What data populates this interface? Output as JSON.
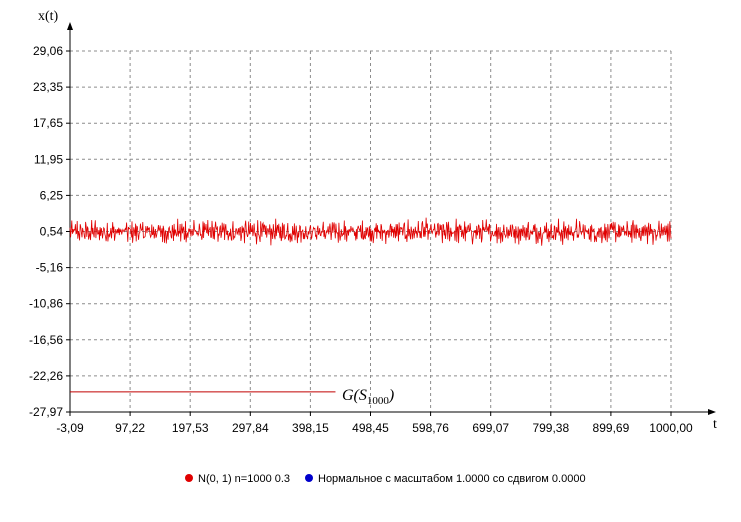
{
  "chart_data": {
    "type": "line",
    "xlabel": "t",
    "ylabel": "x(t)",
    "xlim": [
      -3.09,
      1000.0
    ],
    "ylim": [
      -27.97,
      29.06
    ],
    "x_ticks": [
      "-3,09",
      "97,22",
      "197,53",
      "297,84",
      "398,15",
      "498,45",
      "598,76",
      "699,07",
      "799,38",
      "899,69",
      "1000,00"
    ],
    "y_ticks": [
      "29,06",
      "23,35",
      "17,65",
      "11,95",
      "6,25",
      "0,54",
      "-5,16",
      "-10,86",
      "-16,56",
      "-22,26",
      "-27,97"
    ],
    "grid": true,
    "annotation": {
      "text_main": "G(S",
      "text_sub": "1000",
      "text_close": ")",
      "line_y": -24.8,
      "line_x": [
        -3.09,
        440.0
      ]
    },
    "series": [
      {
        "name": "N(0, 1) n=1000 0.3",
        "color": "#e00000",
        "n_points": 1000,
        "mean": 0.54,
        "typical_range": [
          -1.9,
          3.3
        ],
        "values": [
          1.2,
          -0.3,
          0.8,
          1.9,
          -1.1,
          0.6,
          2.4,
          -0.7,
          0.1,
          1.5,
          -1.4,
          0.9,
          2.8,
          -0.2,
          0.4,
          1.1,
          -0.9,
          1.7,
          0.3,
          -1.6,
          0.7,
          2.1,
          -0.5,
          1.3,
          0.0,
          -1.2,
          1.8,
          0.5,
          -0.8,
          2.6,
          0.2,
          -0.4,
          1.0,
          1.6,
          -1.7,
          0.8,
          2.2,
          -0.1,
          0.6,
          1.4,
          -1.0,
          0.3,
          2.9,
          -0.6,
          1.2,
          0.4,
          -1.3,
          1.9,
          0.7,
          -0.2
        ]
      },
      {
        "name": "Нормальное с масштабом 1.0000 со сдвигом 0.0000",
        "color": "#0000cc"
      }
    ],
    "legend_position": "bottom-center"
  },
  "colors": {
    "grid": "#8c8c8c",
    "axis": "#000000",
    "series_line": "#e00000",
    "annotation_line": "#c00000"
  }
}
